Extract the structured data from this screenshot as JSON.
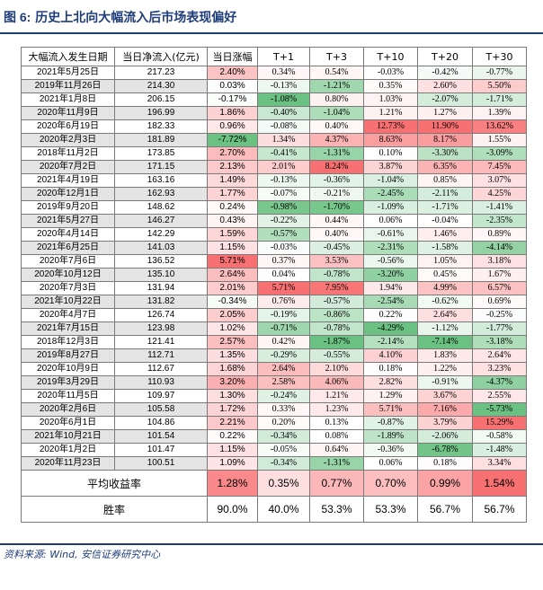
{
  "title": {
    "label": "图 6:",
    "text": "历史上北向大幅流入后市场表现偏好"
  },
  "table": {
    "headers": [
      "大幅流入发生日期",
      "当日净流入(亿元)",
      "当日涨幅",
      "T+1",
      "T+3",
      "T+10",
      "T+20",
      "T+30"
    ],
    "rows": [
      {
        "date": "2021年5月25日",
        "net": "217.23",
        "vals": [
          "2.40%",
          "0.34%",
          "0.54%",
          "-0.03%",
          "-0.42%",
          "-0.77%"
        ]
      },
      {
        "date": "2019年11月26日",
        "net": "214.30",
        "vals": [
          "0.03%",
          "-0.13%",
          "-1.21%",
          "0.35%",
          "2.60%",
          "5.50%"
        ]
      },
      {
        "date": "2021年1月8日",
        "net": "206.15",
        "vals": [
          "-0.17%",
          "-1.08%",
          "0.80%",
          "1.03%",
          "-2.07%",
          "-1.71%"
        ]
      },
      {
        "date": "2020年11月9日",
        "net": "196.99",
        "vals": [
          "1.86%",
          "-0.40%",
          "-1.04%",
          "1.21%",
          "1.27%",
          "1.39%"
        ]
      },
      {
        "date": "2020年6月19日",
        "net": "182.33",
        "vals": [
          "0.96%",
          "-0.08%",
          "0.40%",
          "12.73%",
          "11.90%",
          "13.62%"
        ]
      },
      {
        "date": "2020年2月3日",
        "net": "181.89",
        "vals": [
          "-7.72%",
          "1.34%",
          "4.37%",
          "8.63%",
          "8.17%",
          "1.55%"
        ]
      },
      {
        "date": "2018年11月2日",
        "net": "173.85",
        "vals": [
          "2.70%",
          "-0.41%",
          "-1.31%",
          "0.10%",
          "-3.30%",
          "-3.09%"
        ]
      },
      {
        "date": "2020年7月2日",
        "net": "171.15",
        "vals": [
          "2.13%",
          "2.01%",
          "8.24%",
          "3.87%",
          "6.35%",
          "7.45%"
        ]
      },
      {
        "date": "2021年4月19日",
        "net": "163.16",
        "vals": [
          "1.49%",
          "-0.13%",
          "-0.36%",
          "-1.04%",
          "0.85%",
          "3.07%"
        ]
      },
      {
        "date": "2020年12月1日",
        "net": "162.93",
        "vals": [
          "1.77%",
          "-0.07%",
          "-0.21%",
          "-2.45%",
          "-2.11%",
          "4.25%"
        ]
      },
      {
        "date": "2019年9月20日",
        "net": "148.62",
        "vals": [
          "0.24%",
          "-0.98%",
          "-1.70%",
          "-1.09%",
          "-1.71%",
          "-1.41%"
        ]
      },
      {
        "date": "2021年5月27日",
        "net": "146.27",
        "vals": [
          "0.43%",
          "-0.22%",
          "0.44%",
          "0.06%",
          "-0.04%",
          "-2.35%"
        ]
      },
      {
        "date": "2020年4月14日",
        "net": "142.29",
        "vals": [
          "1.59%",
          "-0.57%",
          "0.40%",
          "-0.61%",
          "1.46%",
          "0.89%"
        ]
      },
      {
        "date": "2021年6月25日",
        "net": "141.03",
        "vals": [
          "1.15%",
          "-0.03%",
          "-0.45%",
          "-2.31%",
          "-1.58%",
          "-4.14%"
        ]
      },
      {
        "date": "2020年7月6日",
        "net": "136.52",
        "vals": [
          "5.71%",
          "0.37%",
          "3.53%",
          "-0.56%",
          "1.05%",
          "3.18%"
        ]
      },
      {
        "date": "2020年10月12日",
        "net": "135.10",
        "vals": [
          "2.64%",
          "0.04%",
          "-0.78%",
          "-3.20%",
          "0.45%",
          "1.67%"
        ]
      },
      {
        "date": "2020年7月3日",
        "net": "131.94",
        "vals": [
          "2.01%",
          "5.71%",
          "7.95%",
          "1.94%",
          "4.99%",
          "6.57%"
        ]
      },
      {
        "date": "2021年10月22日",
        "net": "131.82",
        "vals": [
          "-0.34%",
          "0.76%",
          "-0.57%",
          "-2.54%",
          "-0.62%",
          "0.69%"
        ]
      },
      {
        "date": "2020年4月7日",
        "net": "126.74",
        "vals": [
          "2.05%",
          "-0.19%",
          "-0.86%",
          "0.22%",
          "2.64%",
          "-0.25%"
        ]
      },
      {
        "date": "2021年7月15日",
        "net": "123.98",
        "vals": [
          "1.02%",
          "-0.71%",
          "-0.78%",
          "-4.29%",
          "-1.12%",
          "-1.77%"
        ]
      },
      {
        "date": "2018年12月3日",
        "net": "121.41",
        "vals": [
          "2.57%",
          "0.42%",
          "-1.87%",
          "-2.14%",
          "-7.14%",
          "-3.18%"
        ]
      },
      {
        "date": "2019年8月27日",
        "net": "112.71",
        "vals": [
          "1.35%",
          "-0.29%",
          "-0.55%",
          "4.10%",
          "1.83%",
          "2.64%"
        ]
      },
      {
        "date": "2020年10月9日",
        "net": "112.67",
        "vals": [
          "1.68%",
          "2.64%",
          "2.10%",
          "0.18%",
          "1.22%",
          "3.23%"
        ]
      },
      {
        "date": "2019年3月29日",
        "net": "110.93",
        "vals": [
          "3.20%",
          "2.58%",
          "4.06%",
          "2.82%",
          "-0.91%",
          "-4.37%"
        ]
      },
      {
        "date": "2020年11月5日",
        "net": "109.97",
        "vals": [
          "1.30%",
          "-0.24%",
          "1.21%",
          "1.29%",
          "3.67%",
          "2.55%"
        ]
      },
      {
        "date": "2020年2月6日",
        "net": "105.58",
        "vals": [
          "1.72%",
          "0.33%",
          "1.23%",
          "5.71%",
          "7.16%",
          "-5.73%"
        ]
      },
      {
        "date": "2020年6月1日",
        "net": "104.86",
        "vals": [
          "2.21%",
          "0.20%",
          "0.13%",
          "-0.87%",
          "3.79%",
          "15.29%"
        ]
      },
      {
        "date": "2021年10月21日",
        "net": "101.54",
        "vals": [
          "0.22%",
          "-0.34%",
          "0.08%",
          "-1.89%",
          "-2.06%",
          "-0.58%"
        ]
      },
      {
        "date": "2020年1月2日",
        "net": "101.47",
        "vals": [
          "1.15%",
          "-0.05%",
          "0.64%",
          "-0.36%",
          "-6.78%",
          "-1.48%"
        ]
      },
      {
        "date": "2020年11月23日",
        "net": "100.51",
        "vals": [
          "1.09%",
          "-0.34%",
          "-1.31%",
          "0.06%",
          "0.18%",
          "3.34%"
        ]
      }
    ],
    "summary": [
      {
        "label": "平均收益率",
        "vals": [
          "1.28%",
          "0.35%",
          "0.77%",
          "0.70%",
          "0.99%",
          "1.54%"
        ]
      },
      {
        "label": "胜率",
        "vals": [
          "90.0%",
          "40.0%",
          "53.3%",
          "53.3%",
          "56.7%",
          "56.7%"
        ]
      }
    ]
  },
  "source": "资料来源: Wind, 安信证券研究中心",
  "colors": {
    "title": "#1f3d7a",
    "positive_scale": "#f8696b",
    "negative_scale": "#63be7b",
    "shaded_row": "#e4e4e4"
  }
}
